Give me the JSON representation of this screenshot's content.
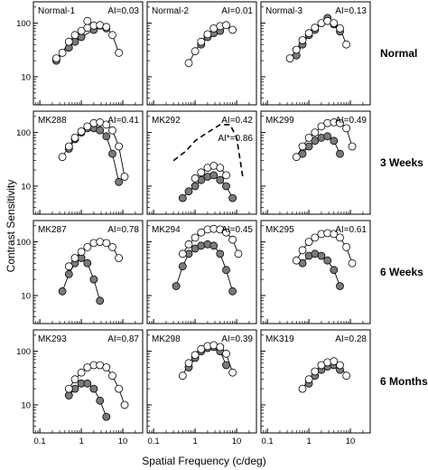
{
  "figure": {
    "ylabel": "Contrast Sensitivity",
    "xlabel": "Spatial Frequency (c/deg)",
    "row_labels": [
      "Normal",
      "3 Weeks",
      "6 Weeks",
      "6 Months"
    ],
    "y_tick_labels": [
      "100",
      "10"
    ],
    "x_tick_labels": [
      "0.1",
      "1",
      "10"
    ]
  },
  "chart_data": [
    {
      "type": "line",
      "label": "Normal-1",
      "ai": "AI=0.03",
      "xscale": "log",
      "yscale": "log",
      "xlim": [
        0.07,
        30
      ],
      "ylim": [
        3,
        250
      ],
      "series": [
        {
          "marker": "open",
          "x": [
            0.25,
            0.35,
            0.5,
            0.7,
            1.0,
            1.4,
            2.0,
            2.8,
            4.0,
            5.6,
            8.0
          ],
          "y": [
            22,
            28,
            45,
            60,
            72,
            82,
            90,
            92,
            85,
            60,
            28
          ]
        },
        {
          "marker": "filled",
          "x": [
            0.25,
            0.5,
            0.7,
            1.0,
            2.0,
            2.8,
            4.0
          ],
          "y": [
            20,
            35,
            45,
            55,
            75,
            90,
            80
          ]
        }
      ],
      "extra_points": [
        {
          "marker": "open",
          "x": 1.4,
          "y": 110
        }
      ]
    },
    {
      "type": "line",
      "label": "Normal-2",
      "ai": "AI=0.01",
      "xscale": "log",
      "yscale": "log",
      "xlim": [
        0.07,
        30
      ],
      "ylim": [
        3,
        250
      ],
      "series": [
        {
          "marker": "open",
          "x": [
            0.7,
            1.0,
            1.4,
            2.0,
            2.8,
            4.0,
            5.6,
            8.0
          ],
          "y": [
            18,
            30,
            45,
            62,
            80,
            88,
            92,
            75
          ]
        },
        {
          "marker": "filled",
          "x": [
            1.4,
            2.0,
            2.8,
            4.0
          ],
          "y": [
            40,
            55,
            65,
            72
          ]
        }
      ]
    },
    {
      "type": "line",
      "label": "Normal-3",
      "ai": "AI=0.13",
      "xscale": "log",
      "yscale": "log",
      "xlim": [
        0.07,
        30
      ],
      "ylim": [
        3,
        250
      ],
      "series": [
        {
          "marker": "open",
          "x": [
            0.35,
            0.5,
            0.7,
            1.0,
            1.4,
            2.0,
            2.8,
            4.0,
            5.6,
            8.0
          ],
          "y": [
            22,
            32,
            48,
            65,
            82,
            100,
            110,
            100,
            80,
            40
          ]
        },
        {
          "marker": "filled",
          "x": [
            0.5,
            0.7,
            1.0,
            1.4,
            2.8,
            4.0,
            5.6
          ],
          "y": [
            25,
            40,
            60,
            75,
            125,
            95,
            70
          ]
        }
      ]
    },
    {
      "type": "line",
      "label": "MK288",
      "ai": "AI=0.41",
      "xscale": "log",
      "yscale": "log",
      "xlim": [
        0.07,
        30
      ],
      "ylim": [
        3,
        250
      ],
      "series": [
        {
          "marker": "open",
          "x": [
            0.35,
            0.5,
            0.7,
            1.0,
            1.4,
            2.0,
            2.8,
            4.0,
            5.6,
            8.0,
            11.0
          ],
          "y": [
            35,
            55,
            80,
            105,
            130,
            150,
            155,
            140,
            110,
            55,
            15
          ]
        },
        {
          "marker": "filled",
          "x": [
            0.5,
            0.7,
            1.0,
            1.4,
            2.0,
            2.8,
            4.0,
            5.6,
            8.0
          ],
          "y": [
            50,
            75,
            100,
            120,
            120,
            110,
            85,
            40,
            12
          ]
        }
      ]
    },
    {
      "type": "line",
      "label": "MK292",
      "ai": "AI=0.42",
      "ai2": "AI*=0.86",
      "xscale": "log",
      "yscale": "log",
      "xlim": [
        0.07,
        30
      ],
      "ylim": [
        3,
        250
      ],
      "series": [
        {
          "marker": "open",
          "x": [
            1.0,
            1.4,
            2.0,
            2.8,
            4.0,
            5.6
          ],
          "y": [
            14,
            18,
            22,
            24,
            22,
            16
          ]
        },
        {
          "marker": "filled",
          "x": [
            0.5,
            0.7,
            1.0,
            1.4,
            2.0,
            2.8,
            4.0,
            5.6,
            8.0
          ],
          "y": [
            6,
            8,
            10,
            13,
            15,
            16,
            13,
            10,
            6
          ]
        },
        {
          "marker": "none",
          "style": "dashed",
          "x": [
            0.3,
            0.6,
            1.0,
            2.0,
            4.0,
            7.0,
            10.0,
            14.0
          ],
          "y": [
            30,
            45,
            70,
            100,
            140,
            140,
            80,
            15
          ]
        }
      ]
    },
    {
      "type": "line",
      "label": "MK299",
      "ai": "AI=0.49",
      "xscale": "log",
      "yscale": "log",
      "xlim": [
        0.07,
        30
      ],
      "ylim": [
        3,
        250
      ],
      "series": [
        {
          "marker": "open",
          "x": [
            0.5,
            0.7,
            1.0,
            1.4,
            2.0,
            2.8,
            4.0,
            5.6,
            8.0,
            11.0
          ],
          "y": [
            35,
            55,
            80,
            100,
            130,
            150,
            155,
            150,
            120,
            55
          ]
        },
        {
          "marker": "filled",
          "x": [
            0.7,
            1.0,
            1.4,
            2.0,
            2.8,
            4.0,
            5.6
          ],
          "y": [
            40,
            55,
            70,
            80,
            85,
            70,
            40
          ]
        }
      ]
    },
    {
      "type": "line",
      "label": "MK287",
      "ai": "AI=0.78",
      "xscale": "log",
      "yscale": "log",
      "xlim": [
        0.07,
        30
      ],
      "ylim": [
        3,
        250
      ],
      "series": [
        {
          "marker": "open",
          "x": [
            0.5,
            0.7,
            1.0,
            1.4,
            2.0,
            2.8,
            4.0,
            5.6,
            8.0
          ],
          "y": [
            35,
            50,
            65,
            80,
            95,
            100,
            95,
            80,
            50
          ]
        },
        {
          "marker": "filled",
          "x": [
            0.35,
            0.5,
            0.7,
            1.0,
            1.4,
            2.0,
            2.8
          ],
          "y": [
            12,
            25,
            40,
            50,
            40,
            20,
            8
          ]
        }
      ]
    },
    {
      "type": "line",
      "label": "MK294",
      "ai": "AI=0.45",
      "xscale": "log",
      "yscale": "log",
      "xlim": [
        0.07,
        30
      ],
      "ylim": [
        3,
        250
      ],
      "series": [
        {
          "marker": "open",
          "x": [
            0.5,
            0.7,
            1.0,
            1.4,
            2.0,
            2.8,
            4.0,
            5.6,
            8.0,
            11.0
          ],
          "y": [
            60,
            90,
            120,
            150,
            170,
            175,
            170,
            150,
            110,
            60
          ]
        },
        {
          "marker": "filled",
          "x": [
            0.35,
            0.5,
            0.7,
            1.0,
            1.4,
            2.0,
            2.8,
            4.0,
            5.6,
            8.0
          ],
          "y": [
            15,
            35,
            60,
            75,
            85,
            90,
            85,
            60,
            30,
            12
          ]
        }
      ]
    },
    {
      "type": "line",
      "label": "MK295",
      "ai": "AI=0.61",
      "xscale": "log",
      "yscale": "log",
      "xlim": [
        0.07,
        30
      ],
      "ylim": [
        3,
        250
      ],
      "series": [
        {
          "marker": "open",
          "x": [
            0.5,
            0.7,
            1.0,
            1.4,
            2.0,
            2.8,
            4.0,
            5.6,
            8.0,
            11.0
          ],
          "y": [
            45,
            70,
            100,
            120,
            140,
            145,
            140,
            120,
            80,
            40
          ]
        },
        {
          "marker": "filled",
          "x": [
            0.7,
            1.0,
            1.4,
            2.0,
            2.8,
            4.0,
            5.6
          ],
          "y": [
            40,
            55,
            60,
            55,
            45,
            30,
            15
          ]
        }
      ]
    },
    {
      "type": "line",
      "label": "MK293",
      "ai": "AI=0.87",
      "xscale": "log",
      "yscale": "log",
      "xlim": [
        0.07,
        30
      ],
      "ylim": [
        3,
        250
      ],
      "series": [
        {
          "marker": "open",
          "x": [
            0.5,
            0.7,
            1.0,
            1.4,
            2.0,
            2.8,
            4.0,
            5.6,
            8.0,
            11.0
          ],
          "y": [
            20,
            30,
            40,
            50,
            55,
            55,
            50,
            35,
            20,
            10
          ]
        },
        {
          "marker": "filled",
          "x": [
            0.5,
            0.7,
            1.0,
            1.4,
            2.0,
            2.8,
            4.0
          ],
          "y": [
            15,
            20,
            25,
            25,
            20,
            12,
            6
          ]
        }
      ]
    },
    {
      "type": "line",
      "label": "MK298",
      "ai": "AI=0.39",
      "xscale": "log",
      "yscale": "log",
      "xlim": [
        0.07,
        30
      ],
      "ylim": [
        3,
        250
      ],
      "series": [
        {
          "marker": "open",
          "x": [
            0.5,
            0.7,
            1.0,
            1.4,
            2.0,
            2.8,
            4.0,
            5.6,
            8.0
          ],
          "y": [
            35,
            60,
            85,
            110,
            125,
            130,
            120,
            90,
            40
          ]
        },
        {
          "marker": "filled",
          "x": [
            0.7,
            1.0,
            1.4,
            2.0,
            2.8,
            4.0,
            5.6
          ],
          "y": [
            50,
            75,
            100,
            115,
            120,
            100,
            55
          ]
        }
      ]
    },
    {
      "type": "line",
      "label": "MK319",
      "ai": "AI=0.28",
      "xscale": "log",
      "yscale": "log",
      "xlim": [
        0.07,
        30
      ],
      "ylim": [
        3,
        250
      ],
      "series": [
        {
          "marker": "open",
          "x": [
            0.7,
            1.0,
            1.4,
            2.0,
            2.8,
            4.0,
            5.6,
            8.0
          ],
          "y": [
            20,
            30,
            42,
            55,
            62,
            65,
            55,
            35
          ]
        },
        {
          "marker": "filled",
          "x": [
            1.0,
            1.4,
            2.0,
            2.8,
            4.0,
            5.6
          ],
          "y": [
            25,
            35,
            45,
            52,
            55,
            45
          ]
        }
      ]
    }
  ]
}
